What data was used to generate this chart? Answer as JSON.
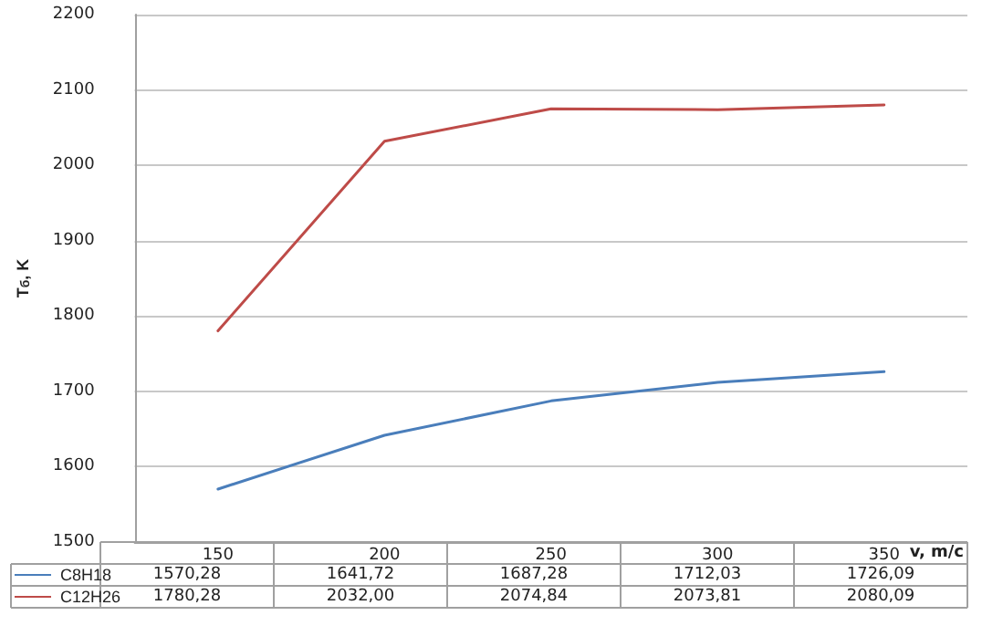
{
  "chart_data": {
    "type": "line",
    "ylabel": "T$_{б}$, K",
    "xlabel": "v, m/c",
    "categories": [
      "150",
      "200",
      "250",
      "300",
      "350"
    ],
    "series": [
      {
        "name": "C8H18",
        "color": "#4a7ebb",
        "values": [
          1570.28,
          1641.72,
          1687.28,
          1712.03,
          1726.09
        ],
        "value_labels": [
          "1570,28",
          "1641,72",
          "1687,28",
          "1712,03",
          "1726,09"
        ]
      },
      {
        "name": "C12H26",
        "color": "#be4b48",
        "values": [
          1780.28,
          2032.0,
          2074.84,
          2073.81,
          2080.09
        ],
        "value_labels": [
          "1780,28",
          "2032,00",
          "2074,84",
          "2073,81",
          "2080,09"
        ]
      }
    ],
    "ylim": [
      1500,
      2200
    ],
    "yticks": [
      1500,
      1600,
      1700,
      1800,
      1900,
      2000,
      2100,
      2200
    ],
    "grid": "y",
    "legend": "bottom left",
    "marker": "none",
    "line_style": "solid"
  }
}
